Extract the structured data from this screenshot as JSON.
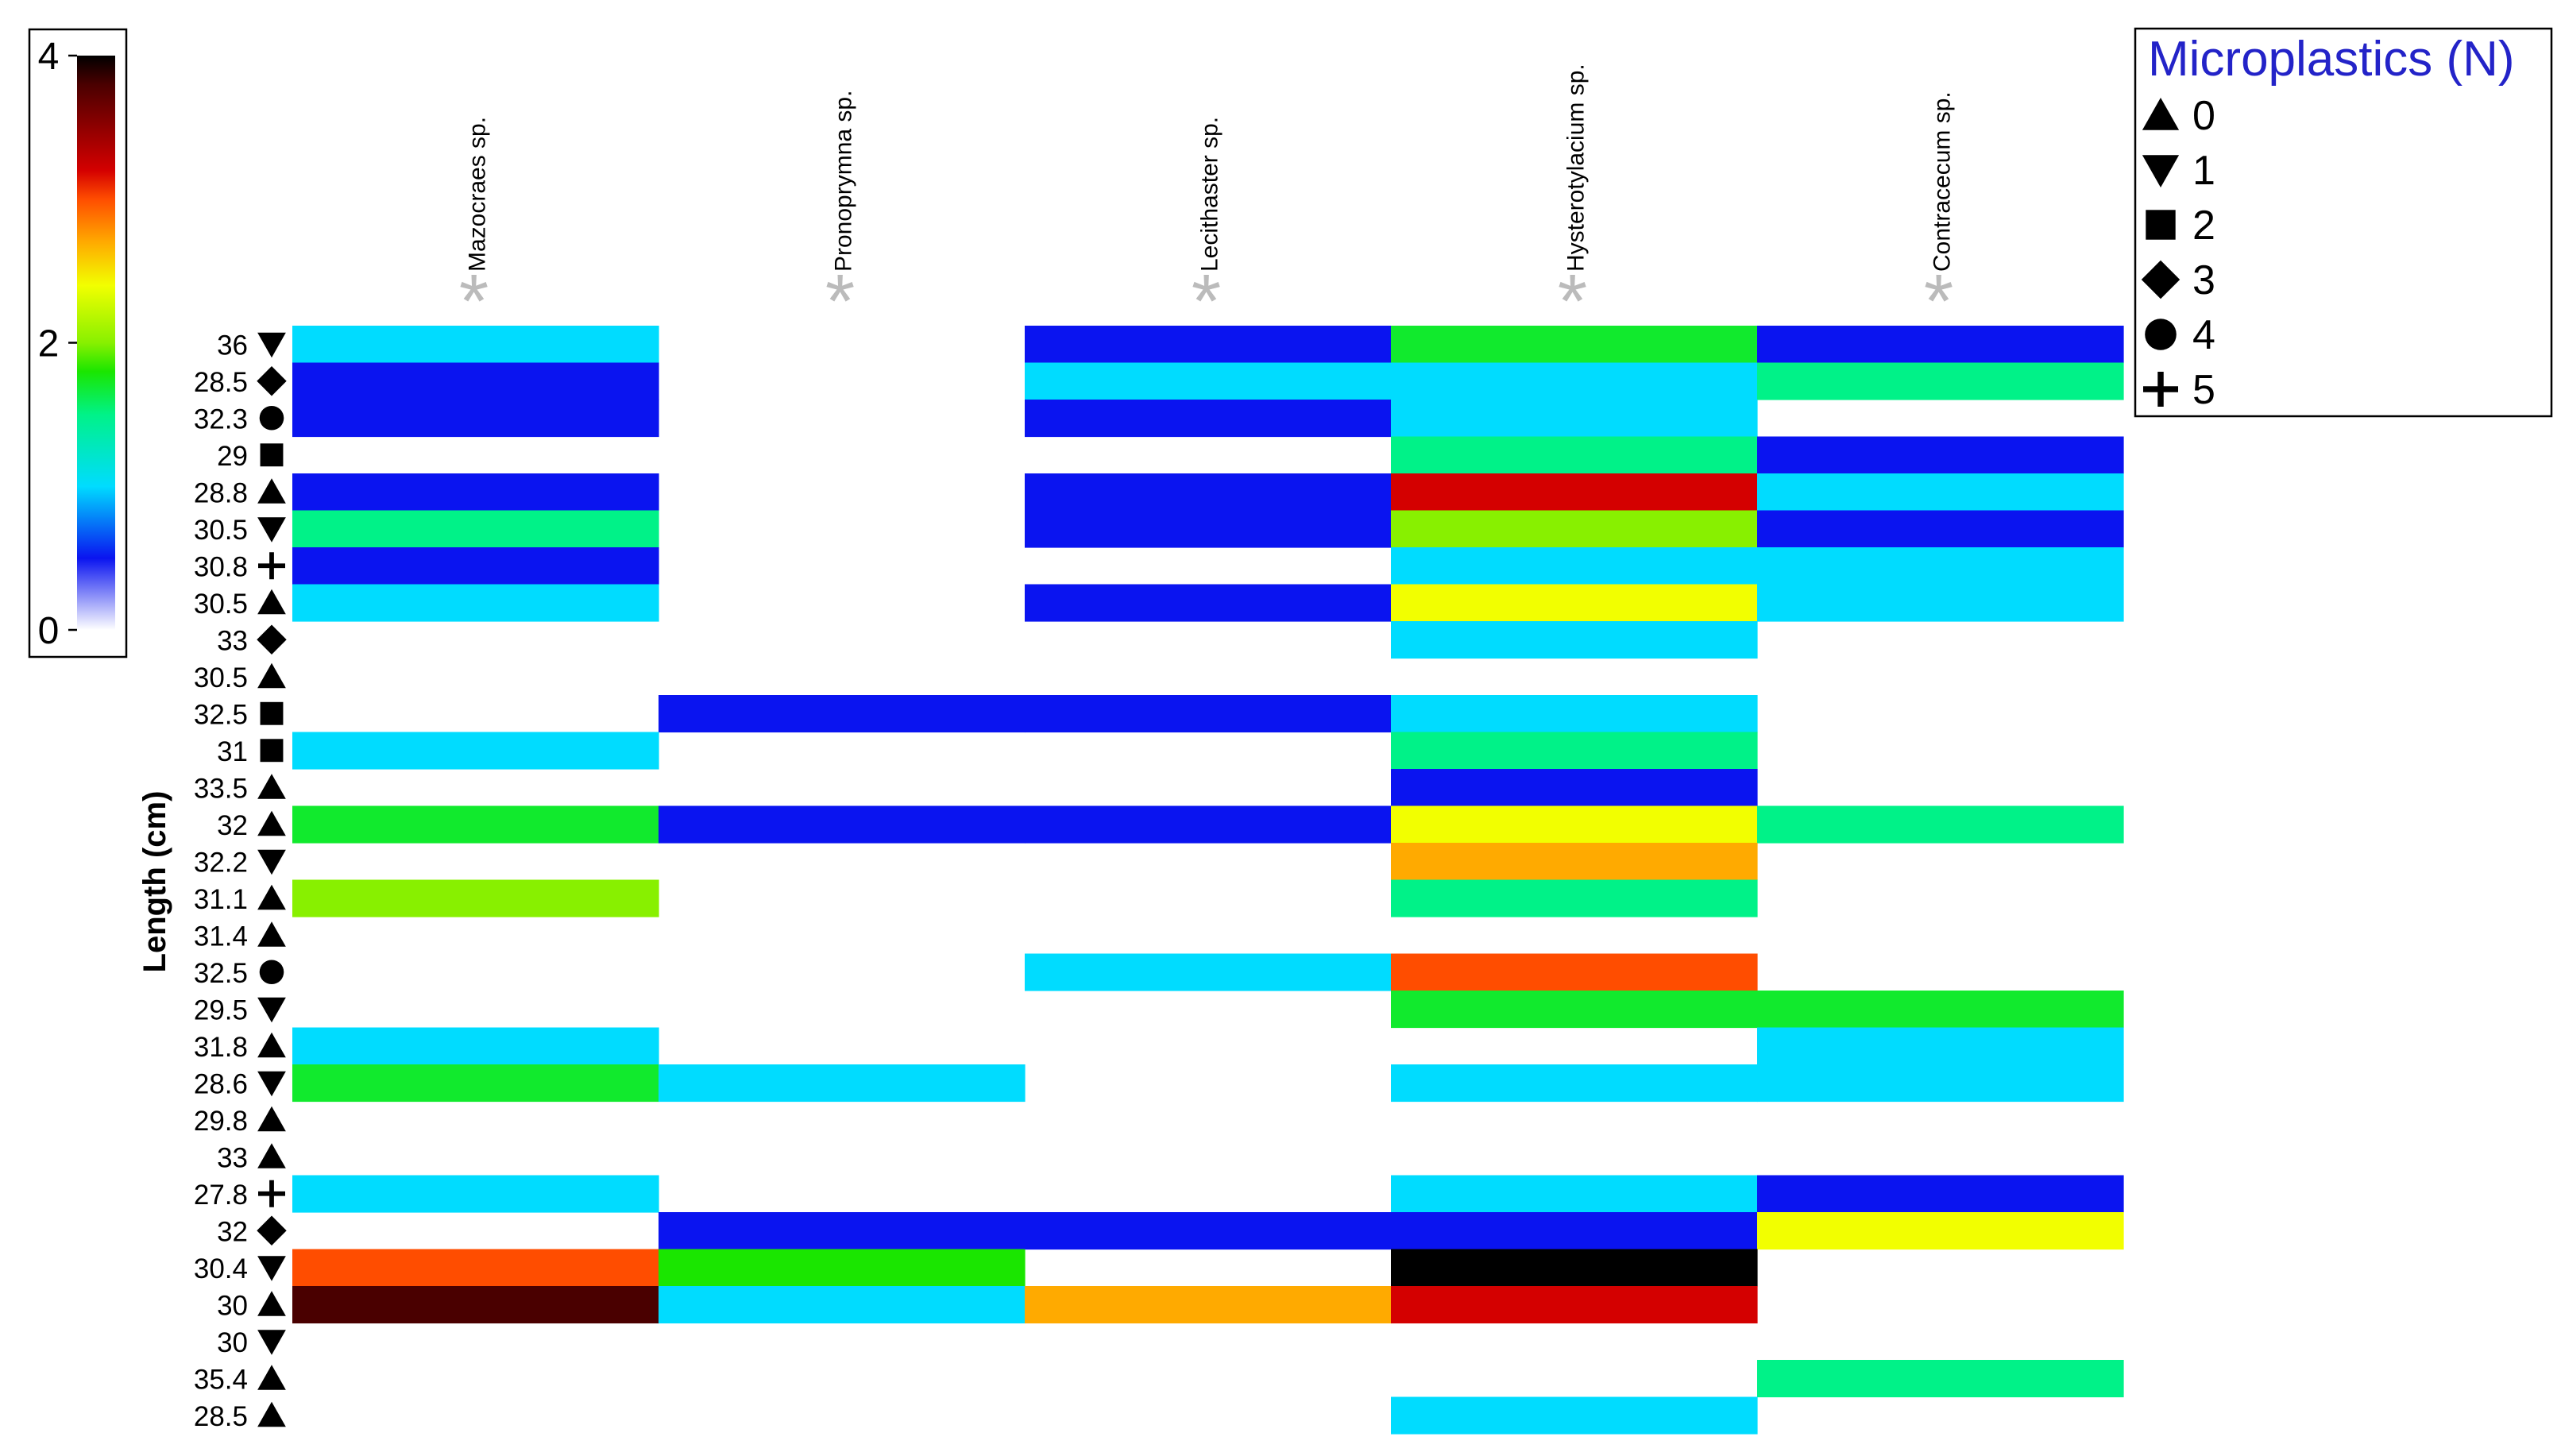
{
  "chart_data": {
    "type": "heatmap",
    "title": "",
    "xlabel": "",
    "ylabel": "Length (cm)",
    "columns": [
      "Mazocraes sp.",
      "Pronoprymna sp.",
      "Lecithaster sp.",
      "Hysterotylacium sp.",
      "Contracecum sp."
    ],
    "column_markers": [
      "*",
      "*",
      "*",
      "*",
      "*"
    ],
    "rows": [
      {
        "length": "36",
        "microplastics": 1,
        "values": [
          1.0,
          null,
          0.5,
          1.7,
          0.5
        ]
      },
      {
        "length": "28.5",
        "microplastics": 3,
        "values": [
          0.5,
          null,
          1.0,
          1.0,
          1.5
        ]
      },
      {
        "length": "32.3",
        "microplastics": 4,
        "values": [
          0.5,
          null,
          0.5,
          1.0,
          null
        ]
      },
      {
        "length": "29",
        "microplastics": 2,
        "values": [
          null,
          null,
          null,
          1.5,
          0.5
        ]
      },
      {
        "length": "28.8",
        "microplastics": 0,
        "values": [
          0.5,
          null,
          0.5,
          3.2,
          1.0
        ]
      },
      {
        "length": "30.5",
        "microplastics": 1,
        "values": [
          1.5,
          null,
          0.5,
          2.0,
          0.5
        ]
      },
      {
        "length": "30.8",
        "microplastics": 5,
        "values": [
          0.5,
          null,
          null,
          1.0,
          1.0
        ]
      },
      {
        "length": "30.5",
        "microplastics": 0,
        "values": [
          1.0,
          null,
          0.5,
          2.4,
          1.0
        ]
      },
      {
        "length": "33",
        "microplastics": 3,
        "values": [
          null,
          null,
          null,
          1.0,
          null
        ]
      },
      {
        "length": "30.5",
        "microplastics": 0,
        "values": [
          null,
          null,
          null,
          null,
          null
        ]
      },
      {
        "length": "32.5",
        "microplastics": 2,
        "values": [
          null,
          0.5,
          0.5,
          1.0,
          null
        ]
      },
      {
        "length": "31",
        "microplastics": 2,
        "values": [
          1.0,
          null,
          null,
          1.5,
          null
        ]
      },
      {
        "length": "33.5",
        "microplastics": 0,
        "values": [
          null,
          null,
          null,
          0.5,
          null
        ]
      },
      {
        "length": "32",
        "microplastics": 0,
        "values": [
          1.7,
          0.5,
          0.5,
          2.4,
          1.5
        ]
      },
      {
        "length": "32.2",
        "microplastics": 1,
        "values": [
          null,
          null,
          null,
          2.7,
          null
        ]
      },
      {
        "length": "31.1",
        "microplastics": 0,
        "values": [
          2.0,
          null,
          null,
          1.5,
          null
        ]
      },
      {
        "length": "31.4",
        "microplastics": 0,
        "values": [
          null,
          null,
          null,
          null,
          null
        ]
      },
      {
        "length": "32.5",
        "microplastics": 4,
        "values": [
          null,
          null,
          1.0,
          3.0,
          null
        ]
      },
      {
        "length": "29.5",
        "microplastics": 1,
        "values": [
          null,
          null,
          null,
          1.7,
          1.7
        ]
      },
      {
        "length": "31.8",
        "microplastics": 0,
        "values": [
          1.0,
          null,
          null,
          null,
          1.0
        ]
      },
      {
        "length": "28.6",
        "microplastics": 1,
        "values": [
          1.7,
          1.0,
          null,
          1.0,
          1.0
        ]
      },
      {
        "length": "29.8",
        "microplastics": 0,
        "values": [
          null,
          null,
          null,
          null,
          null
        ]
      },
      {
        "length": "33",
        "microplastics": 0,
        "values": [
          null,
          null,
          null,
          null,
          null
        ]
      },
      {
        "length": "27.8",
        "microplastics": 5,
        "values": [
          1.0,
          null,
          null,
          1.0,
          0.5
        ]
      },
      {
        "length": "32",
        "microplastics": 3,
        "values": [
          null,
          0.5,
          0.5,
          0.5,
          2.4
        ]
      },
      {
        "length": "30.4",
        "microplastics": 1,
        "values": [
          3.0,
          1.8,
          null,
          4.0,
          null
        ]
      },
      {
        "length": "30",
        "microplastics": 0,
        "values": [
          3.8,
          1.0,
          2.7,
          3.2,
          null
        ]
      },
      {
        "length": "30",
        "microplastics": 1,
        "values": [
          null,
          null,
          null,
          null,
          null
        ]
      },
      {
        "length": "35.4",
        "microplastics": 0,
        "values": [
          null,
          null,
          null,
          null,
          1.5
        ]
      },
      {
        "length": "28.5",
        "microplastics": 0,
        "values": [
          null,
          null,
          null,
          1.0,
          null
        ]
      }
    ],
    "color_scale": {
      "min": 0,
      "max": 4,
      "tick_labels": [
        "0",
        "2",
        "4"
      ],
      "stops": [
        {
          "v": 0.0,
          "color": "#ffffff"
        },
        {
          "v": 0.5,
          "color": "#0a14f0"
        },
        {
          "v": 1.0,
          "color": "#00dcff"
        },
        {
          "v": 1.5,
          "color": "#00f288"
        },
        {
          "v": 1.8,
          "color": "#1ae600"
        },
        {
          "v": 2.0,
          "color": "#88f000"
        },
        {
          "v": 2.4,
          "color": "#f2ff00"
        },
        {
          "v": 2.7,
          "color": "#ffaa00"
        },
        {
          "v": 3.0,
          "color": "#ff4d00"
        },
        {
          "v": 3.2,
          "color": "#d40000"
        },
        {
          "v": 3.8,
          "color": "#4a0000"
        },
        {
          "v": 4.0,
          "color": "#000000"
        }
      ]
    },
    "legend": {
      "title": "Microplastics (N)",
      "placement": "top-right",
      "title_color": "#2323c8",
      "entries": [
        {
          "label": "0",
          "shape": "triangle-up"
        },
        {
          "label": "1",
          "shape": "triangle-down"
        },
        {
          "label": "2",
          "shape": "square"
        },
        {
          "label": "3",
          "shape": "diamond"
        },
        {
          "label": "4",
          "shape": "circle"
        },
        {
          "label": "5",
          "shape": "plus"
        }
      ]
    },
    "marker_color": "#bbbbbb"
  }
}
